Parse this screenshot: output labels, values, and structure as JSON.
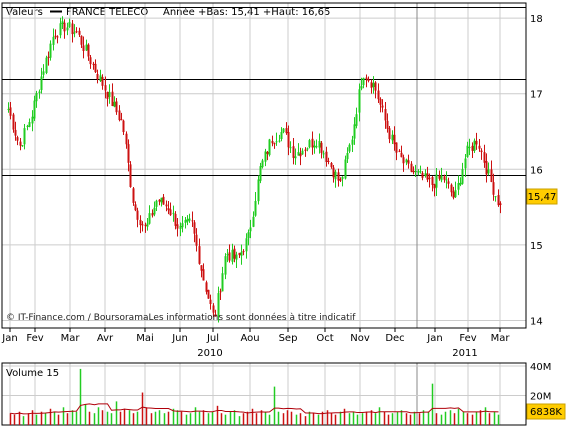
{
  "header": {
    "label": "Valeurs",
    "instrument": "FRANCE TELECO",
    "range_text": "Année +Bas: 15,41 +Haut: 16,65"
  },
  "colors": {
    "up": "#22cc22",
    "down": "#cc1111",
    "grid": "#cccccc",
    "frame": "#000000",
    "last_badge": "#ffcc00",
    "volume_line": "#b0000a"
  },
  "chart_data": [
    {
      "type": "candlestick",
      "title": "FRANCE TELECO",
      "x_ticks": [
        "Jan",
        "Fev",
        "Mar",
        "Avr",
        "Mai",
        "Jun",
        "Jul",
        "Aou",
        "Sep",
        "Oct",
        "Nov",
        "Dec",
        "Jan",
        "Fev",
        "Mar"
      ],
      "year_labels": [
        "2010",
        "2011"
      ],
      "y_ticks": [
        "14",
        "15",
        "16",
        "17",
        "18"
      ],
      "ylim": [
        13.9,
        18.2
      ],
      "reference_lines": [
        18.15,
        17.2,
        15.92
      ],
      "last_value": "15,47",
      "watermark": "© IT-Finance.com / BoursoramaLes informations sont données à titre indicatif",
      "series": [
        {
          "values": [
            16.8,
            16.3,
            16.7,
            17.3,
            17.8,
            17.9,
            17.8,
            17.5,
            17.2,
            16.9,
            16.6,
            15.5,
            15.2,
            15.6,
            15.5,
            15.2,
            15.3,
            14.6,
            14.0,
            14.9,
            14.8,
            15.1,
            16.0,
            16.4,
            16.5,
            16.2,
            16.3,
            16.4,
            16.1,
            15.8,
            16.4,
            17.3,
            17.1,
            16.6,
            16.2,
            16.0,
            15.9,
            15.8,
            15.9,
            15.6,
            16.2,
            16.4,
            15.9,
            15.5
          ]
        }
      ]
    },
    {
      "type": "bar",
      "title": "Volume 15",
      "y_ticks": [
        "20M",
        "40M"
      ],
      "ylim": [
        0,
        42
      ],
      "last_value": "6838K",
      "values": [
        8,
        7,
        9,
        6,
        8,
        10,
        7,
        9,
        8,
        11,
        9,
        7,
        12,
        8,
        10,
        9,
        38,
        14,
        9,
        8,
        12,
        10,
        9,
        8,
        16,
        9,
        11,
        10,
        8,
        9,
        22,
        12,
        8,
        9,
        10,
        8,
        9,
        11,
        10,
        9,
        7,
        8,
        12,
        9,
        10,
        8,
        9,
        13,
        8,
        7,
        9,
        10,
        6,
        8,
        9,
        11,
        8,
        10,
        9,
        7,
        26,
        9,
        8,
        10,
        9,
        7,
        8,
        6,
        9,
        8,
        7,
        9,
        10,
        8,
        7,
        9,
        11,
        8,
        9,
        7,
        8,
        9,
        10,
        8,
        12,
        9,
        7,
        8,
        9,
        10,
        8,
        7,
        9,
        8,
        10,
        9,
        28,
        8,
        7,
        9,
        10,
        8,
        11,
        9,
        8,
        7,
        9,
        10,
        12,
        8,
        9,
        7
      ]
    }
  ]
}
